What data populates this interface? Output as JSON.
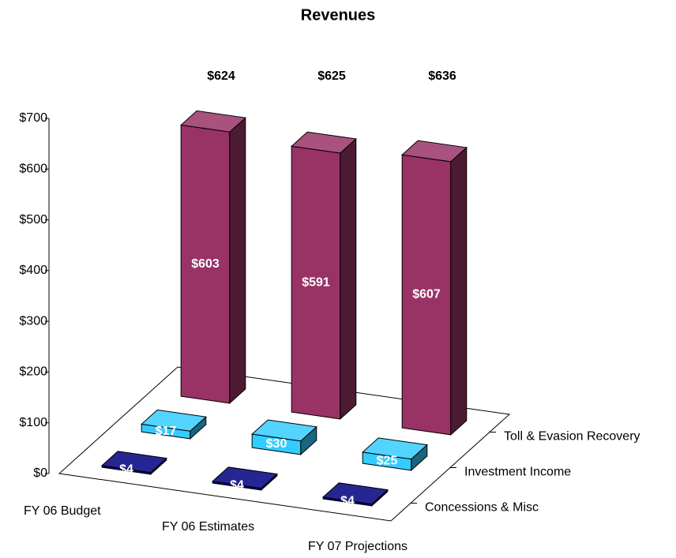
{
  "chart_data": {
    "type": "bar3d",
    "title": "Revenues",
    "categories": [
      "FY 06 Budget",
      "FY 06 Estimates",
      "FY 07 Projections"
    ],
    "series": [
      {
        "name": "Concessions & Misc",
        "color": "#000080",
        "values": [
          4,
          4,
          4
        ],
        "value_labels": [
          "$4",
          "$4",
          "$4"
        ]
      },
      {
        "name": "Investment Income",
        "color": "#33ccff",
        "values": [
          17,
          30,
          25
        ],
        "value_labels": [
          "$17",
          "$30",
          "$25"
        ]
      },
      {
        "name": "Toll & Evasion Recovery",
        "color": "#993366",
        "values": [
          603,
          591,
          607
        ],
        "value_labels": [
          "$603",
          "$591",
          "$607"
        ]
      }
    ],
    "totals": [
      624,
      625,
      636
    ],
    "total_labels": [
      "$624",
      "$625",
      "$636"
    ],
    "ylim": [
      0,
      700
    ],
    "yticks": [
      {
        "value": 0,
        "label": "$0"
      },
      {
        "value": 100,
        "label": "$100"
      },
      {
        "value": 200,
        "label": "$200"
      },
      {
        "value": 300,
        "label": "$300"
      },
      {
        "value": 400,
        "label": "$400"
      },
      {
        "value": 500,
        "label": "$500"
      },
      {
        "value": 600,
        "label": "$600"
      },
      {
        "value": 700,
        "label": "$700"
      }
    ]
  }
}
